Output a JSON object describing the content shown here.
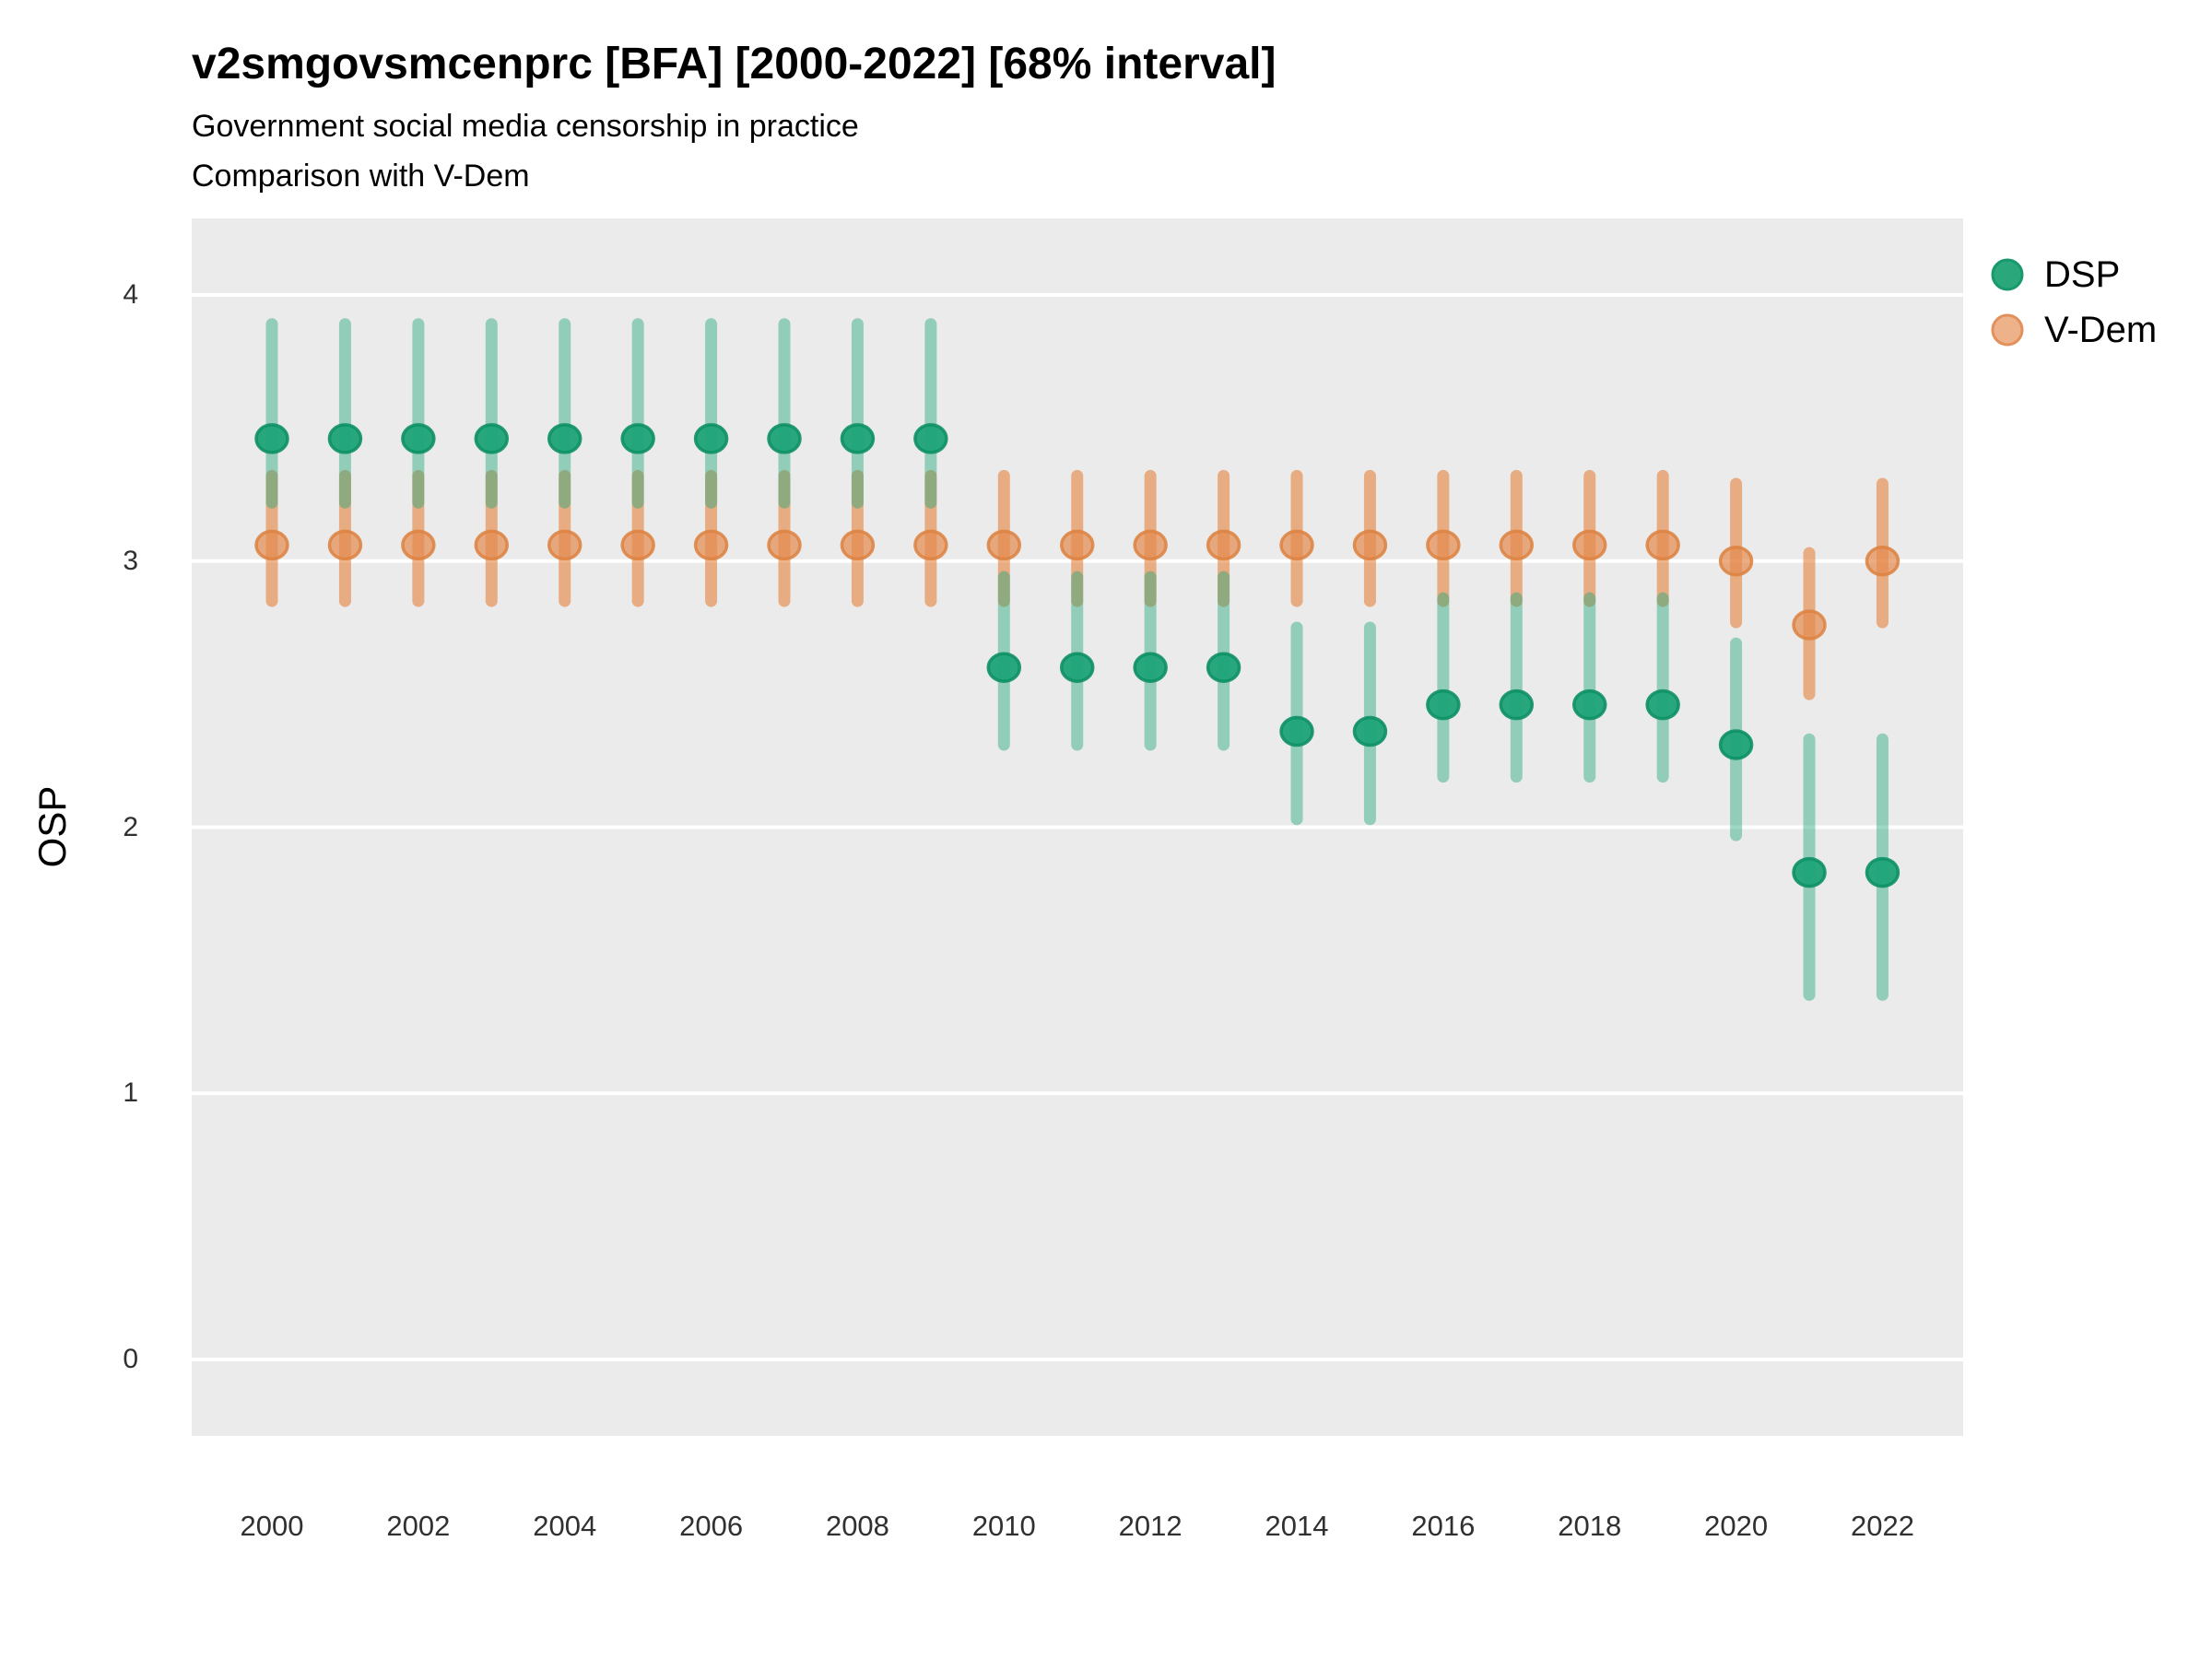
{
  "chart_data": {
    "type": "pointrange",
    "title": "v2smgovsmcenprc [BFA] [2000-2022] [68% interval]",
    "subtitle1": "Government social media censorship in practice",
    "subtitle2": "Comparison with V-Dem",
    "ylabel": "OSP",
    "interval_note": "68% interval",
    "panel_bg": "#ebebeb",
    "gridline_color": "#ffffff",
    "x_ticks": [
      2000,
      2002,
      2004,
      2006,
      2008,
      2010,
      2012,
      2014,
      2016,
      2018,
      2020,
      2022
    ],
    "y_ticks": [
      0,
      1,
      2,
      3,
      4
    ],
    "y_range_shown": [
      -0.29,
      4.29
    ],
    "x_range_years": [
      2000,
      2022
    ],
    "legend_position": "right",
    "series": [
      {
        "name": "DSP",
        "point_fill": "#1ea377",
        "point_fill_opacity": 0.95,
        "point_stroke": "#0e9066",
        "point_stroke_opacity": 0.9,
        "bar_color": "#26a97c",
        "bar_opacity": 0.45,
        "legend_fill": "#2aa87c",
        "legend_stroke": "#17996d",
        "points": [
          {
            "year": 2000,
            "est": 3.46,
            "lo": 3.22,
            "hi": 3.89
          },
          {
            "year": 2001,
            "est": 3.46,
            "lo": 3.22,
            "hi": 3.89
          },
          {
            "year": 2002,
            "est": 3.46,
            "lo": 3.22,
            "hi": 3.89
          },
          {
            "year": 2003,
            "est": 3.46,
            "lo": 3.22,
            "hi": 3.89
          },
          {
            "year": 2004,
            "est": 3.46,
            "lo": 3.22,
            "hi": 3.89
          },
          {
            "year": 2005,
            "est": 3.46,
            "lo": 3.22,
            "hi": 3.89
          },
          {
            "year": 2006,
            "est": 3.46,
            "lo": 3.22,
            "hi": 3.89
          },
          {
            "year": 2007,
            "est": 3.46,
            "lo": 3.22,
            "hi": 3.89
          },
          {
            "year": 2008,
            "est": 3.46,
            "lo": 3.22,
            "hi": 3.89
          },
          {
            "year": 2009,
            "est": 3.46,
            "lo": 3.22,
            "hi": 3.89
          },
          {
            "year": 2010,
            "est": 2.6,
            "lo": 2.31,
            "hi": 2.94
          },
          {
            "year": 2011,
            "est": 2.6,
            "lo": 2.31,
            "hi": 2.94
          },
          {
            "year": 2012,
            "est": 2.6,
            "lo": 2.31,
            "hi": 2.94
          },
          {
            "year": 2013,
            "est": 2.6,
            "lo": 2.31,
            "hi": 2.94
          },
          {
            "year": 2014,
            "est": 2.36,
            "lo": 2.03,
            "hi": 2.75
          },
          {
            "year": 2015,
            "est": 2.36,
            "lo": 2.03,
            "hi": 2.75
          },
          {
            "year": 2016,
            "est": 2.46,
            "lo": 2.19,
            "hi": 2.86
          },
          {
            "year": 2017,
            "est": 2.46,
            "lo": 2.19,
            "hi": 2.86
          },
          {
            "year": 2018,
            "est": 2.46,
            "lo": 2.19,
            "hi": 2.86
          },
          {
            "year": 2019,
            "est": 2.46,
            "lo": 2.19,
            "hi": 2.86
          },
          {
            "year": 2020,
            "est": 2.31,
            "lo": 1.97,
            "hi": 2.69
          },
          {
            "year": 2021,
            "est": 1.83,
            "lo": 1.37,
            "hi": 2.33
          },
          {
            "year": 2022,
            "est": 1.83,
            "lo": 1.37,
            "hi": 2.33
          }
        ]
      },
      {
        "name": "V-Dem",
        "point_fill": "#e58a4e",
        "point_fill_opacity": 0.7,
        "point_stroke": "#dc8140",
        "point_stroke_opacity": 0.85,
        "bar_color": "#e4823c",
        "bar_opacity": 0.6,
        "legend_fill": "#edb28a",
        "legend_stroke": "#e2905c",
        "points": [
          {
            "year": 2000,
            "est": 3.06,
            "lo": 2.85,
            "hi": 3.32
          },
          {
            "year": 2001,
            "est": 3.06,
            "lo": 2.85,
            "hi": 3.32
          },
          {
            "year": 2002,
            "est": 3.06,
            "lo": 2.85,
            "hi": 3.32
          },
          {
            "year": 2003,
            "est": 3.06,
            "lo": 2.85,
            "hi": 3.32
          },
          {
            "year": 2004,
            "est": 3.06,
            "lo": 2.85,
            "hi": 3.32
          },
          {
            "year": 2005,
            "est": 3.06,
            "lo": 2.85,
            "hi": 3.32
          },
          {
            "year": 2006,
            "est": 3.06,
            "lo": 2.85,
            "hi": 3.32
          },
          {
            "year": 2007,
            "est": 3.06,
            "lo": 2.85,
            "hi": 3.32
          },
          {
            "year": 2008,
            "est": 3.06,
            "lo": 2.85,
            "hi": 3.32
          },
          {
            "year": 2009,
            "est": 3.06,
            "lo": 2.85,
            "hi": 3.32
          },
          {
            "year": 2010,
            "est": 3.06,
            "lo": 2.85,
            "hi": 3.32
          },
          {
            "year": 2011,
            "est": 3.06,
            "lo": 2.85,
            "hi": 3.32
          },
          {
            "year": 2012,
            "est": 3.06,
            "lo": 2.85,
            "hi": 3.32
          },
          {
            "year": 2013,
            "est": 3.06,
            "lo": 2.85,
            "hi": 3.32
          },
          {
            "year": 2014,
            "est": 3.06,
            "lo": 2.85,
            "hi": 3.32
          },
          {
            "year": 2015,
            "est": 3.06,
            "lo": 2.85,
            "hi": 3.32
          },
          {
            "year": 2016,
            "est": 3.06,
            "lo": 2.85,
            "hi": 3.32
          },
          {
            "year": 2017,
            "est": 3.06,
            "lo": 2.85,
            "hi": 3.32
          },
          {
            "year": 2018,
            "est": 3.06,
            "lo": 2.85,
            "hi": 3.32
          },
          {
            "year": 2019,
            "est": 3.06,
            "lo": 2.85,
            "hi": 3.32
          },
          {
            "year": 2020,
            "est": 3.0,
            "lo": 2.77,
            "hi": 3.29
          },
          {
            "year": 2021,
            "est": 2.76,
            "lo": 2.5,
            "hi": 3.03
          },
          {
            "year": 2022,
            "est": 3.0,
            "lo": 2.77,
            "hi": 3.29
          }
        ]
      }
    ]
  }
}
